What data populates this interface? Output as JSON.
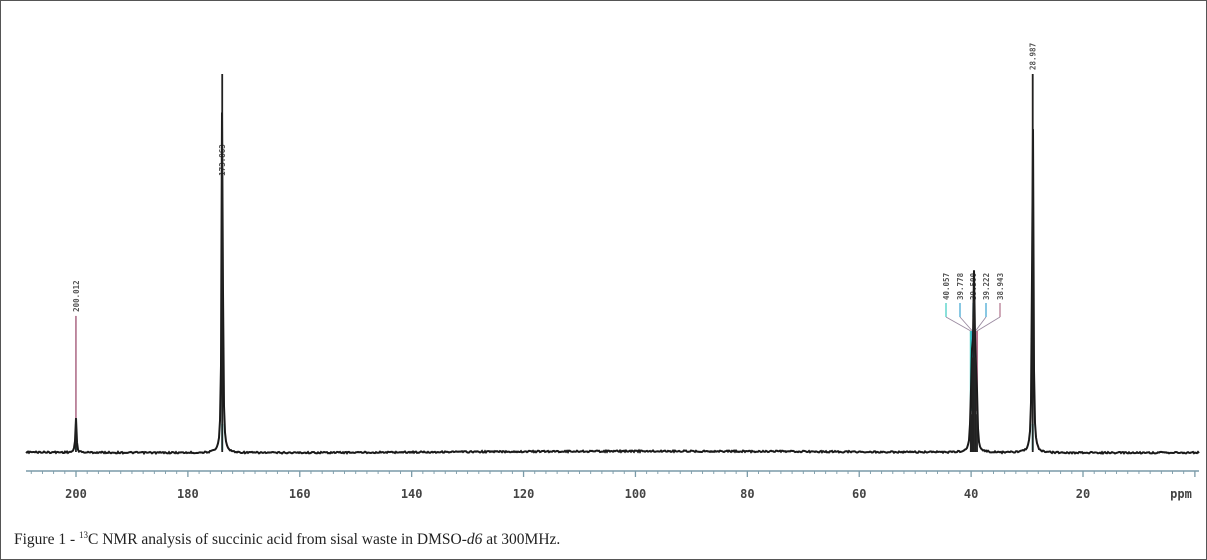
{
  "chart_data": {
    "type": "line",
    "title": "",
    "xlabel": "ppm",
    "ylabel": "",
    "x_reversed": true,
    "xlim": [
      208.5,
      0
    ],
    "x_ticks": [
      200,
      180,
      160,
      140,
      120,
      100,
      80,
      60,
      40,
      20
    ],
    "x_tick_labels": [
      "200",
      "180",
      "160",
      "140",
      "120",
      "100",
      "80",
      "60",
      "40",
      "20"
    ],
    "grid": false,
    "legend": "none",
    "peaks": [
      {
        "ppm": 200.012,
        "label": "200.012",
        "intensity": 0.09,
        "marker_height": 0.36,
        "color": "#b0708a",
        "accent": "#3ccac0"
      },
      {
        "ppm": 173.863,
        "label": "173.863",
        "intensity": 1.0,
        "marker_height": 0.72,
        "color": "#4fb89a",
        "accent": "#3ccac0"
      },
      {
        "ppm": 40.057,
        "label": "40.057",
        "intensity": 0.1,
        "marker_height": 0.38,
        "color": "#3ccac0",
        "accent": "#3ccac0"
      },
      {
        "ppm": 39.778,
        "label": "39.778",
        "intensity": 0.25,
        "marker_height": 0.45,
        "color": "#3aa4d0",
        "accent": "#3ccac0"
      },
      {
        "ppm": 39.5,
        "label": "39.500",
        "intensity": 0.4,
        "marker_height": 0.45,
        "color": "#4ab7d9",
        "accent": "#3ccac0"
      },
      {
        "ppm": 39.222,
        "label": "39.222",
        "intensity": 0.25,
        "marker_height": 0.45,
        "color": "#3aa4d0",
        "accent": "#3ccac0"
      },
      {
        "ppm": 38.943,
        "label": "38.943",
        "intensity": 0.1,
        "marker_height": 0.38,
        "color": "#b0708a",
        "accent": "#3ccac0"
      },
      {
        "ppm": 28.987,
        "label": "28.987",
        "intensity": 1.0,
        "marker_height": 1.0,
        "color": "#c89070",
        "accent": "#3ccac0"
      }
    ],
    "baseline_color": "#1a1a1a"
  },
  "caption": {
    "prefix": "Figure 1 - ",
    "superscript": "13",
    "text_main": "C NMR analysis of succinic acid from sisal waste in DMSO-",
    "text_italic": "d6",
    "text_end": " at 300MHz."
  }
}
